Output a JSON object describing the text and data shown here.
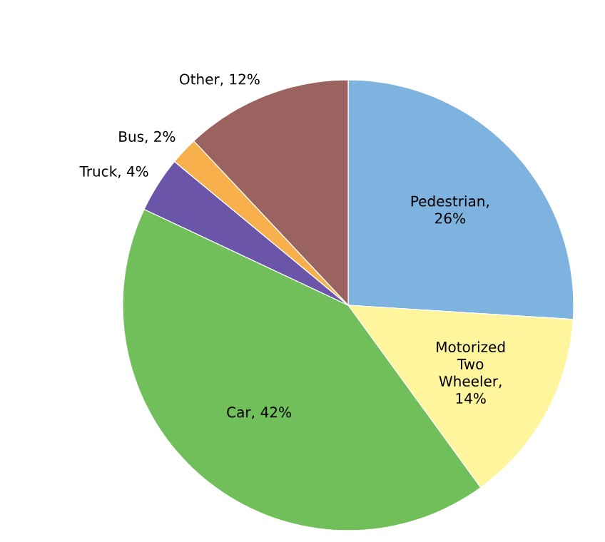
{
  "chart_data": {
    "type": "pie",
    "categories": [
      "Pedestrian",
      "Motorized Two Wheeler",
      "Car",
      "Truck",
      "Bus",
      "Other"
    ],
    "values": [
      26,
      14,
      42,
      4,
      2,
      12
    ],
    "value_labels": [
      ", 26%",
      ", 14%",
      ", 42%",
      ", 4%",
      ", 2%",
      ", 12%"
    ],
    "colors": [
      "#7eb3e0",
      "#fff59d",
      "#70bf5a",
      "#6a55a8",
      "#f7b04c",
      "#9a635f"
    ]
  }
}
